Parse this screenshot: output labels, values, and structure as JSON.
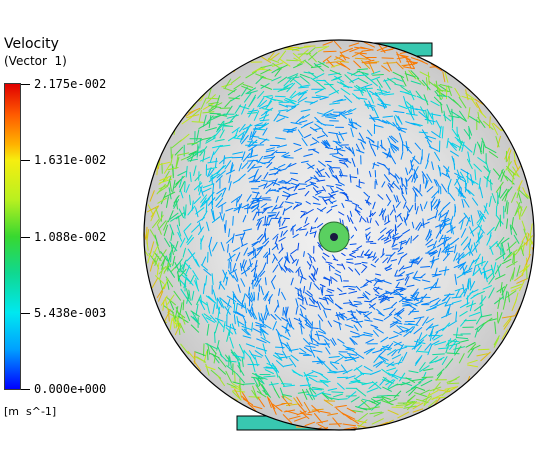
{
  "legend": {
    "title": "Velocity",
    "subtitle": "(Vector  1)",
    "ticks": [
      "2.175e-002",
      "1.631e-002",
      "1.088e-002",
      "5.438e-003",
      "0.000e+000"
    ],
    "units": "[m  s^-1]"
  },
  "colors": {
    "max": "#e00000",
    "mid_high": "#f6ee10",
    "mid": "#38d830",
    "mid_low": "#00e8f0",
    "min": "#0000ff",
    "domain_fill": "#d9d9d9",
    "outline": "#000000"
  }
}
